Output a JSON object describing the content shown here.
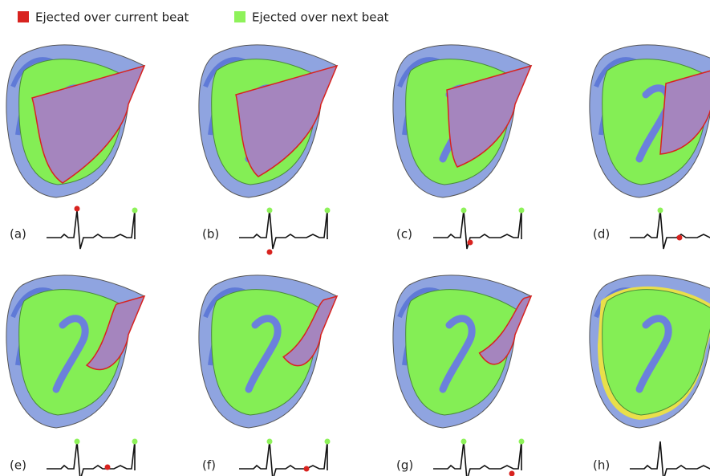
{
  "legend": [
    {
      "label": "Ejected over current beat",
      "color": "#d8231f"
    },
    {
      "label": "Ejected over next beat",
      "color": "#8ef25a"
    }
  ],
  "panels": [
    {
      "label": "(a)"
    },
    {
      "label": "(b)"
    },
    {
      "label": "(c)"
    },
    {
      "label": "(d)"
    },
    {
      "label": "(e)"
    },
    {
      "label": "(f)"
    },
    {
      "label": "(g)"
    },
    {
      "label": "(h)"
    }
  ]
}
